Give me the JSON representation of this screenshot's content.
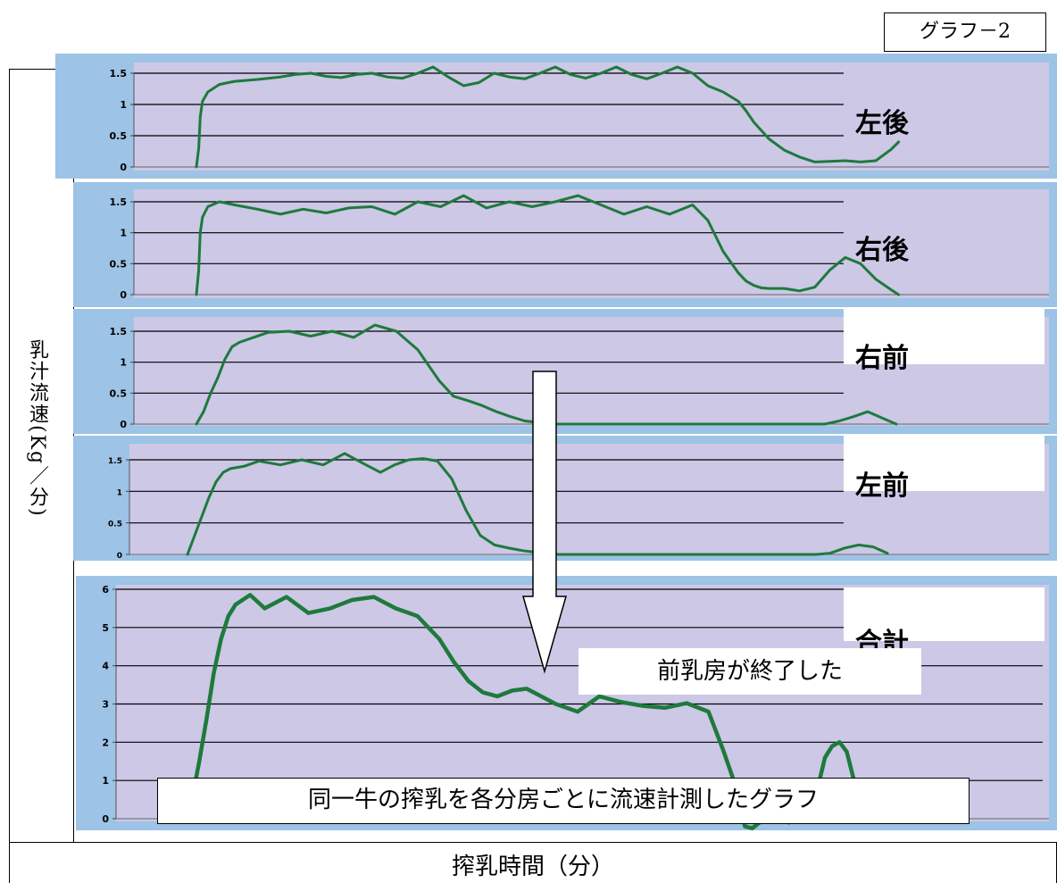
{
  "figure_tag": "グラフ－2",
  "y_axis_label": "乳汁流速(Kg／分)",
  "x_axis_label": "搾乳時間（分）",
  "annotations": {
    "front_quarters_done": "前乳房が終了した",
    "caption": "同一牛の搾乳を各分房ごとに流速計測したグラフ"
  },
  "colors": {
    "panel_frame": "#9dc3e6",
    "plot_area": "#ccc8e6",
    "line": "#1e7a3c",
    "arrow_fill": "#ffffff"
  },
  "chart_data": [
    {
      "type": "line",
      "title": "左後",
      "ylim": [
        0,
        1.5
      ],
      "yticks": [
        "0",
        "0.5",
        "1",
        "1.5"
      ],
      "grid": true,
      "series": [
        {
          "x": [
            0,
            0.3,
            0.5,
            0.8,
            1.5,
            3,
            5,
            8,
            11,
            13,
            15,
            17,
            19,
            21,
            23,
            25,
            27,
            29,
            31,
            33,
            35,
            37,
            39,
            41,
            43,
            45,
            47,
            49,
            51,
            53,
            55,
            57,
            59,
            61,
            63,
            65,
            67,
            69,
            71,
            72,
            73,
            75,
            77,
            79,
            81,
            83,
            85,
            87,
            89,
            91,
            92
          ],
          "y": [
            0,
            0.3,
            0.8,
            1.05,
            1.2,
            1.32,
            1.37,
            1.4,
            1.44,
            1.48,
            1.5,
            1.45,
            1.43,
            1.48,
            1.5,
            1.44,
            1.42,
            1.5,
            1.6,
            1.44,
            1.3,
            1.35,
            1.5,
            1.44,
            1.41,
            1.5,
            1.6,
            1.48,
            1.42,
            1.5,
            1.6,
            1.48,
            1.41,
            1.5,
            1.6,
            1.5,
            1.3,
            1.2,
            1.05,
            0.9,
            0.72,
            0.45,
            0.27,
            0.16,
            0.08,
            0.09,
            0.1,
            0.08,
            0.1,
            0.28,
            0.4
          ]
        }
      ]
    },
    {
      "type": "line",
      "title": "右後",
      "ylim": [
        0,
        1.5
      ],
      "yticks": [
        "0",
        "0.5",
        "1",
        "1.5"
      ],
      "grid": true,
      "series": [
        {
          "x": [
            0,
            0.3,
            0.5,
            0.8,
            1.5,
            3,
            5,
            8,
            11,
            14,
            17,
            20,
            23,
            26,
            29,
            32,
            35,
            38,
            41,
            44,
            47,
            50,
            53,
            56,
            59,
            62,
            65,
            67,
            69,
            71,
            72,
            73,
            74,
            75,
            77,
            79,
            81,
            83,
            85,
            87,
            89,
            91,
            92
          ],
          "y": [
            0,
            0.4,
            1.0,
            1.25,
            1.42,
            1.5,
            1.45,
            1.38,
            1.3,
            1.38,
            1.32,
            1.4,
            1.42,
            1.3,
            1.5,
            1.42,
            1.6,
            1.4,
            1.5,
            1.42,
            1.5,
            1.6,
            1.45,
            1.3,
            1.42,
            1.3,
            1.45,
            1.2,
            0.7,
            0.35,
            0.22,
            0.15,
            0.11,
            0.1,
            0.1,
            0.06,
            0.12,
            0.4,
            0.6,
            0.5,
            0.25,
            0.08,
            0
          ]
        }
      ]
    },
    {
      "type": "line",
      "title": "右前",
      "ylim": [
        0,
        1.5
      ],
      "yticks": [
        "0",
        "0.5",
        "1",
        "1.5"
      ],
      "grid": true,
      "series": [
        {
          "x": [
            0,
            1,
            2,
            3,
            4,
            5,
            6,
            8,
            10,
            13,
            16,
            19,
            22,
            25,
            28,
            31,
            34,
            36,
            38,
            40,
            42,
            44,
            46,
            50,
            55,
            60,
            65,
            70,
            75,
            80,
            85,
            88,
            90,
            92,
            94,
            96,
            98
          ],
          "y": [
            0,
            0.2,
            0.5,
            0.75,
            1.05,
            1.25,
            1.32,
            1.4,
            1.48,
            1.5,
            1.42,
            1.5,
            1.4,
            1.6,
            1.5,
            1.2,
            0.7,
            0.45,
            0.38,
            0.3,
            0.2,
            0.12,
            0.05,
            0,
            0,
            0,
            0,
            0,
            0,
            0,
            0,
            0,
            0.05,
            0.12,
            0.2,
            0.1,
            0
          ]
        }
      ]
    },
    {
      "type": "line",
      "title": "左前",
      "ylim": [
        0,
        1.5
      ],
      "yticks": [
        "1",
        "1.5",
        "0",
        "0.5"
      ],
      "grid": true,
      "series": [
        {
          "x": [
            0,
            1,
            2,
            3,
            4,
            5,
            6,
            8,
            10,
            13,
            16,
            19,
            22,
            25,
            27,
            29,
            31,
            33,
            35,
            37,
            39,
            41,
            43,
            45,
            47,
            49,
            52,
            55,
            60,
            65,
            70,
            75,
            80,
            85,
            88,
            90,
            92,
            94,
            96,
            98
          ],
          "y": [
            0,
            0.3,
            0.6,
            0.9,
            1.15,
            1.3,
            1.36,
            1.4,
            1.48,
            1.42,
            1.5,
            1.42,
            1.6,
            1.42,
            1.3,
            1.42,
            1.5,
            1.52,
            1.48,
            1.2,
            0.7,
            0.3,
            0.15,
            0.1,
            0.06,
            0.03,
            0,
            0,
            0,
            0,
            0,
            0,
            0,
            0,
            0,
            0.02,
            0.1,
            0.15,
            0.12,
            0.02
          ]
        }
      ]
    },
    {
      "type": "line",
      "title": "合計",
      "ylim": [
        0,
        6
      ],
      "yticks": [
        "0",
        "1",
        "2",
        "3",
        "4",
        "5",
        "6"
      ],
      "grid": true,
      "series": [
        {
          "x": [
            0,
            1,
            2,
            3,
            4,
            5,
            6,
            8,
            10,
            13,
            16,
            19,
            22,
            25,
            28,
            31,
            34,
            36,
            38,
            40,
            42,
            44,
            46,
            48,
            50,
            53,
            56,
            59,
            62,
            65,
            68,
            71,
            73,
            75,
            76,
            77,
            78,
            80,
            82,
            84,
            86,
            87,
            88,
            89,
            90,
            91,
            92
          ],
          "y": [
            0.5,
            1.5,
            2.6,
            3.8,
            4.7,
            5.3,
            5.6,
            5.85,
            5.5,
            5.8,
            5.38,
            5.5,
            5.72,
            5.8,
            5.5,
            5.3,
            4.7,
            4.1,
            3.6,
            3.3,
            3.2,
            3.35,
            3.4,
            3.2,
            3.0,
            2.8,
            3.2,
            3.05,
            2.95,
            2.9,
            3.02,
            2.8,
            1.8,
            0.7,
            -0.2,
            -0.25,
            -0.1,
            0.1,
            -0.1,
            0.2,
            0.8,
            1.6,
            1.9,
            2.0,
            1.75,
            1.0,
            0.6
          ]
        }
      ]
    }
  ]
}
